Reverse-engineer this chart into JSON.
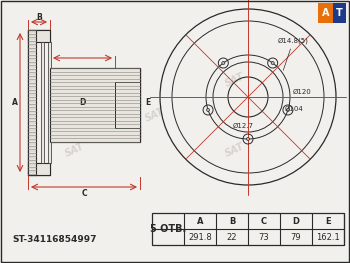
{
  "bg_color": "#f2f0ed",
  "line_color": "#2a2a2a",
  "red_color": "#c0392b",
  "part_number": "ST-34116854997",
  "table_header": [
    "A",
    "B",
    "C",
    "D",
    "E"
  ],
  "table_values": [
    "291.8",
    "22",
    "73",
    "79",
    "162.1"
  ],
  "holes_label": "5 ОТВ.",
  "dim_labels": {
    "d14": "Ø14.8(5)",
    "d120": "Ø120",
    "d104": "Ø104",
    "d12": "Ø12.7"
  },
  "at_logo_orange": "#e8700a",
  "at_logo_blue": "#1e3a8a",
  "watermark_color": "#cbc8c2",
  "cross_fill": "#e8e4de",
  "hatch_color": "#888880"
}
